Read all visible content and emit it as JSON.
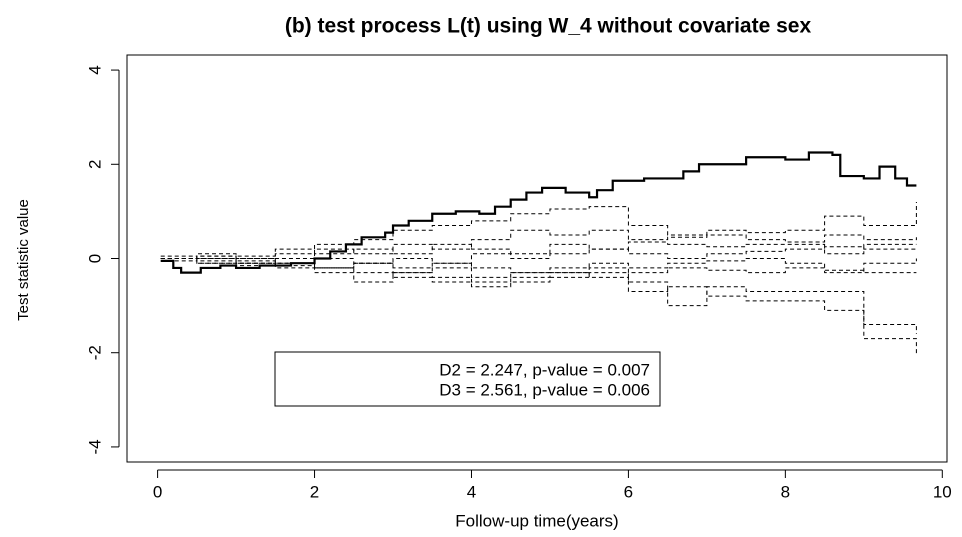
{
  "chart_data": {
    "type": "step-line",
    "title": "(b) test process L(t) using W_4 without covariate sex",
    "x_label": "Follow-up time(years)",
    "y_label": "Test statistic value",
    "annotations": [
      "D2 = 2.247, p-value = 0.007",
      "D3 = 2.561, p-value = 0.006"
    ],
    "xlim": [
      -0.39,
      10.06
    ],
    "xticks": [
      0,
      2,
      4,
      6,
      8,
      10
    ],
    "ylim": [
      -4.32,
      4.32
    ],
    "yticks": [
      -4,
      -2,
      0,
      2,
      4
    ],
    "grid": false,
    "series": [
      {
        "color": "#000000",
        "line_style": "solid",
        "x": [
          0.04,
          0.2,
          0.3,
          0.55,
          0.8,
          1.0,
          1.3,
          1.7,
          2.0,
          2.2,
          2.4,
          2.6,
          2.9,
          3.0,
          3.2,
          3.5,
          3.8,
          4.1,
          4.3,
          4.5,
          4.7,
          4.9,
          5.2,
          5.5,
          5.6,
          5.8,
          6.2,
          6.7,
          6.9,
          7.2,
          7.5,
          8.0,
          8.3,
          8.6,
          8.7,
          9.0,
          9.2,
          9.4,
          9.55,
          9.67
        ],
        "values": [
          -0.05,
          -0.2,
          -0.3,
          -0.2,
          -0.15,
          -0.2,
          -0.15,
          -0.1,
          0.0,
          0.15,
          0.3,
          0.45,
          0.55,
          0.7,
          0.8,
          0.95,
          1.0,
          0.95,
          1.1,
          1.25,
          1.4,
          1.5,
          1.4,
          1.3,
          1.45,
          1.65,
          1.7,
          1.85,
          2.0,
          2.0,
          2.15,
          2.1,
          2.25,
          2.2,
          1.75,
          1.7,
          1.95,
          1.7,
          1.55,
          1.55
        ]
      },
      {
        "color": "#000000",
        "line_style": "dashed",
        "x": [
          0.04,
          0.5,
          1,
          1.5,
          2,
          2.5,
          3,
          3.5,
          4,
          4.5,
          5,
          5.5,
          6,
          6.5,
          7,
          7.5,
          8,
          8.5,
          9,
          9.67
        ],
        "values": [
          0,
          0.1,
          0.05,
          0.2,
          0.3,
          0.4,
          0.6,
          0.7,
          0.8,
          0.95,
          1.05,
          1.1,
          0.7,
          0.5,
          0.6,
          0.55,
          0.6,
          0.9,
          0.7,
          1.2
        ]
      },
      {
        "color": "#000000",
        "line_style": "dashed",
        "x": [
          0.04,
          0.5,
          1,
          1.5,
          2,
          2.5,
          3,
          3.5,
          4,
          4.5,
          5,
          5.5,
          6,
          6.5,
          7,
          7.5,
          8,
          8.5,
          9,
          9.67
        ],
        "values": [
          0,
          -0.1,
          0,
          0.1,
          0.2,
          0.1,
          0.3,
          0.2,
          0.4,
          0.6,
          0.5,
          0.6,
          0.4,
          0.45,
          0.5,
          0.4,
          0.35,
          0.5,
          0.4,
          0.45
        ]
      },
      {
        "color": "#000000",
        "line_style": "dashed",
        "x": [
          0.04,
          0.5,
          1,
          1.5,
          2,
          2.5,
          3,
          3.5,
          4,
          4.5,
          5,
          5.5,
          6,
          6.5,
          7,
          7.5,
          8,
          8.5,
          9,
          9.67
        ],
        "values": [
          0.05,
          0,
          -0.1,
          0,
          0.1,
          0.2,
          0.1,
          0.3,
          0.2,
          0.1,
          0.3,
          0.2,
          0.35,
          0.3,
          0.25,
          0.3,
          0.3,
          0.1,
          0.3,
          0.3
        ]
      },
      {
        "color": "#000000",
        "line_style": "dashed",
        "x": [
          0.04,
          0.5,
          1,
          1.5,
          2,
          2.5,
          3,
          3.5,
          4,
          4.5,
          5,
          5.5,
          6,
          6.5,
          7,
          7.5,
          8,
          8.5,
          9,
          9.67
        ],
        "values": [
          0,
          0.05,
          -0.05,
          -0.1,
          0,
          -0.1,
          0,
          -0.1,
          0.1,
          0,
          0.1,
          0.2,
          0.1,
          0,
          0.1,
          0.15,
          0.2,
          0.25,
          0.2,
          0.2
        ]
      },
      {
        "color": "#000000",
        "line_style": "dashed",
        "x": [
          0.04,
          0.5,
          1,
          1.5,
          2,
          2.5,
          3,
          3.5,
          4,
          4.5,
          5,
          5.5,
          6,
          6.5,
          7,
          7.5,
          8,
          8.5,
          9,
          9.67
        ],
        "values": [
          -0.05,
          -0.1,
          -0.15,
          -0.1,
          -0.2,
          -0.1,
          -0.2,
          -0.1,
          -0.2,
          -0.3,
          -0.2,
          -0.1,
          -0.2,
          -0.1,
          -0.05,
          0,
          -0.1,
          -0.3,
          -0.1,
          0
        ]
      },
      {
        "color": "#000000",
        "line_style": "dashed",
        "x": [
          0.04,
          0.5,
          1,
          1.5,
          2,
          2.5,
          3,
          3.5,
          4,
          4.5,
          5,
          5.5,
          6,
          6.5,
          7,
          7.5,
          8,
          8.5,
          9,
          9.67
        ],
        "values": [
          0,
          0,
          -0.1,
          -0.2,
          -0.3,
          -0.5,
          -0.3,
          -0.4,
          -0.5,
          -0.4,
          -0.3,
          -0.2,
          -0.3,
          -0.2,
          -0.25,
          -0.3,
          -0.2,
          -0.25,
          -0.3,
          -0.3
        ]
      },
      {
        "color": "#000000",
        "line_style": "dashed",
        "x": [
          0.04,
          0.5,
          1,
          1.5,
          2,
          2.5,
          3,
          3.5,
          4,
          4.5,
          5,
          5.5,
          6,
          6.5,
          7,
          7.5,
          8,
          8.5,
          9,
          9.67
        ],
        "values": [
          0,
          -0.05,
          -0.1,
          -0.15,
          -0.2,
          -0.3,
          -0.4,
          -0.5,
          -0.6,
          -0.5,
          -0.4,
          -0.3,
          -0.7,
          -0.6,
          -0.8,
          -0.9,
          -0.9,
          -1.1,
          -1.4,
          -1.6
        ]
      },
      {
        "color": "#000000",
        "line_style": "dashed",
        "x": [
          0.04,
          0.5,
          1,
          1.5,
          2,
          2.5,
          3,
          3.5,
          4,
          4.5,
          5,
          5.5,
          6,
          6.5,
          7,
          7.5,
          8,
          8.5,
          9,
          9.67
        ],
        "values": [
          0,
          0.05,
          0,
          -0.1,
          -0.2,
          -0.1,
          -0.3,
          -0.2,
          -0.4,
          -0.3,
          -0.3,
          -0.4,
          -0.5,
          -1.0,
          -0.6,
          -0.7,
          -0.7,
          -0.7,
          -1.7,
          -2.05
        ]
      }
    ]
  }
}
